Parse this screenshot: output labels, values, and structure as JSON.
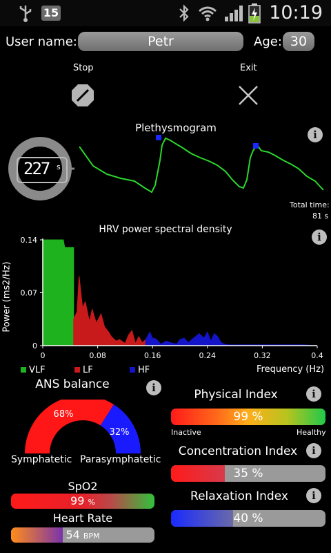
{
  "status_bar": {
    "notification_count": "15",
    "time": "10:19"
  },
  "user": {
    "name_label": "User name:",
    "name": "Petr",
    "age_label": "Age:",
    "age": "30"
  },
  "controls": {
    "stop_label": "Stop",
    "exit_label": "Exit"
  },
  "timer": {
    "value": "227",
    "unit": "s"
  },
  "plethysmogram": {
    "title": "Plethysmogram",
    "total_time_label": "Total time:",
    "total_time_value": "81 s"
  },
  "hrv": {
    "title": "HRV power spectral density",
    "ylabel": "Power (ms2/Hz)",
    "xlabel": "Frequency (Hz)",
    "y_ticks": [
      "0.14",
      "0.07",
      "0"
    ],
    "x_ticks": [
      "0",
      "0.08",
      "0.16",
      "0.24",
      "0.32",
      "0.4"
    ],
    "legend": [
      "VLF",
      "LF",
      "HF"
    ]
  },
  "chart_data": {
    "type": "area",
    "title": "HRV power spectral density",
    "xlabel": "Frequency (Hz)",
    "ylabel": "Power (ms2/Hz)",
    "xlim": [
      0,
      0.4
    ],
    "ylim": [
      0,
      0.14
    ],
    "series": [
      {
        "name": "VLF",
        "color": "#1fb21f",
        "x": [
          0,
          0.0,
          0.03,
          0.032,
          0.04,
          0.045,
          0.045
        ],
        "y": [
          0,
          0.14,
          0.14,
          0.13,
          0.13,
          0.13,
          0
        ]
      },
      {
        "name": "LF",
        "color": "#c81a1a",
        "x": [
          0.045,
          0.05,
          0.053,
          0.058,
          0.062,
          0.068,
          0.072,
          0.078,
          0.085,
          0.09,
          0.096,
          0.1,
          0.107,
          0.112,
          0.12,
          0.125,
          0.13,
          0.135,
          0.14,
          0.145,
          0.15
        ],
        "y": [
          0.035,
          0.045,
          0.092,
          0.05,
          0.058,
          0.032,
          0.048,
          0.03,
          0.042,
          0.025,
          0.018,
          0.012,
          0.006,
          0.008,
          0.003,
          0.014,
          0.02,
          0.003,
          0.012,
          0.004,
          0.008
        ]
      },
      {
        "name": "HF",
        "color": "#1414c8",
        "x": [
          0.15,
          0.156,
          0.16,
          0.165,
          0.172,
          0.18,
          0.186,
          0.195,
          0.2,
          0.206,
          0.212,
          0.22,
          0.228,
          0.235,
          0.24,
          0.245,
          0.25,
          0.255,
          0.26,
          0.265,
          0.27,
          0.3,
          0.34,
          0.38,
          0.4
        ],
        "y": [
          0.008,
          0.018,
          0.01,
          0.009,
          0.002,
          0.006,
          0.004,
          0.002,
          0.008,
          0.01,
          0.004,
          0.01,
          0.016,
          0.01,
          0.018,
          0.006,
          0.016,
          0.012,
          0.004,
          0.002,
          0.001,
          0.001,
          0.001,
          0.001,
          0.0
        ]
      }
    ]
  },
  "ans": {
    "title": "ANS balance",
    "symphatetic_pct": "68%",
    "parasymphatetic_pct": "32%",
    "symphatetic_fraction": 0.68,
    "label_left": "Symphatetic",
    "label_right": "Parasymphatetic"
  },
  "physical": {
    "title": "Physical Index",
    "value": "99 %",
    "fraction": 0.99,
    "left": "Inactive",
    "right": "Healthy"
  },
  "concentration": {
    "title": "Concentration Index",
    "value": "35 %",
    "fraction": 0.35
  },
  "relaxation": {
    "title": "Relaxation Index",
    "value": "40 %",
    "fraction": 0.4
  },
  "spo2": {
    "title": "SpO2",
    "value": "99",
    "unit": "%",
    "fraction": 0.99
  },
  "heart_rate": {
    "title": "Heart Rate",
    "value": "54",
    "unit": "BPM",
    "fraction": 0.36
  }
}
